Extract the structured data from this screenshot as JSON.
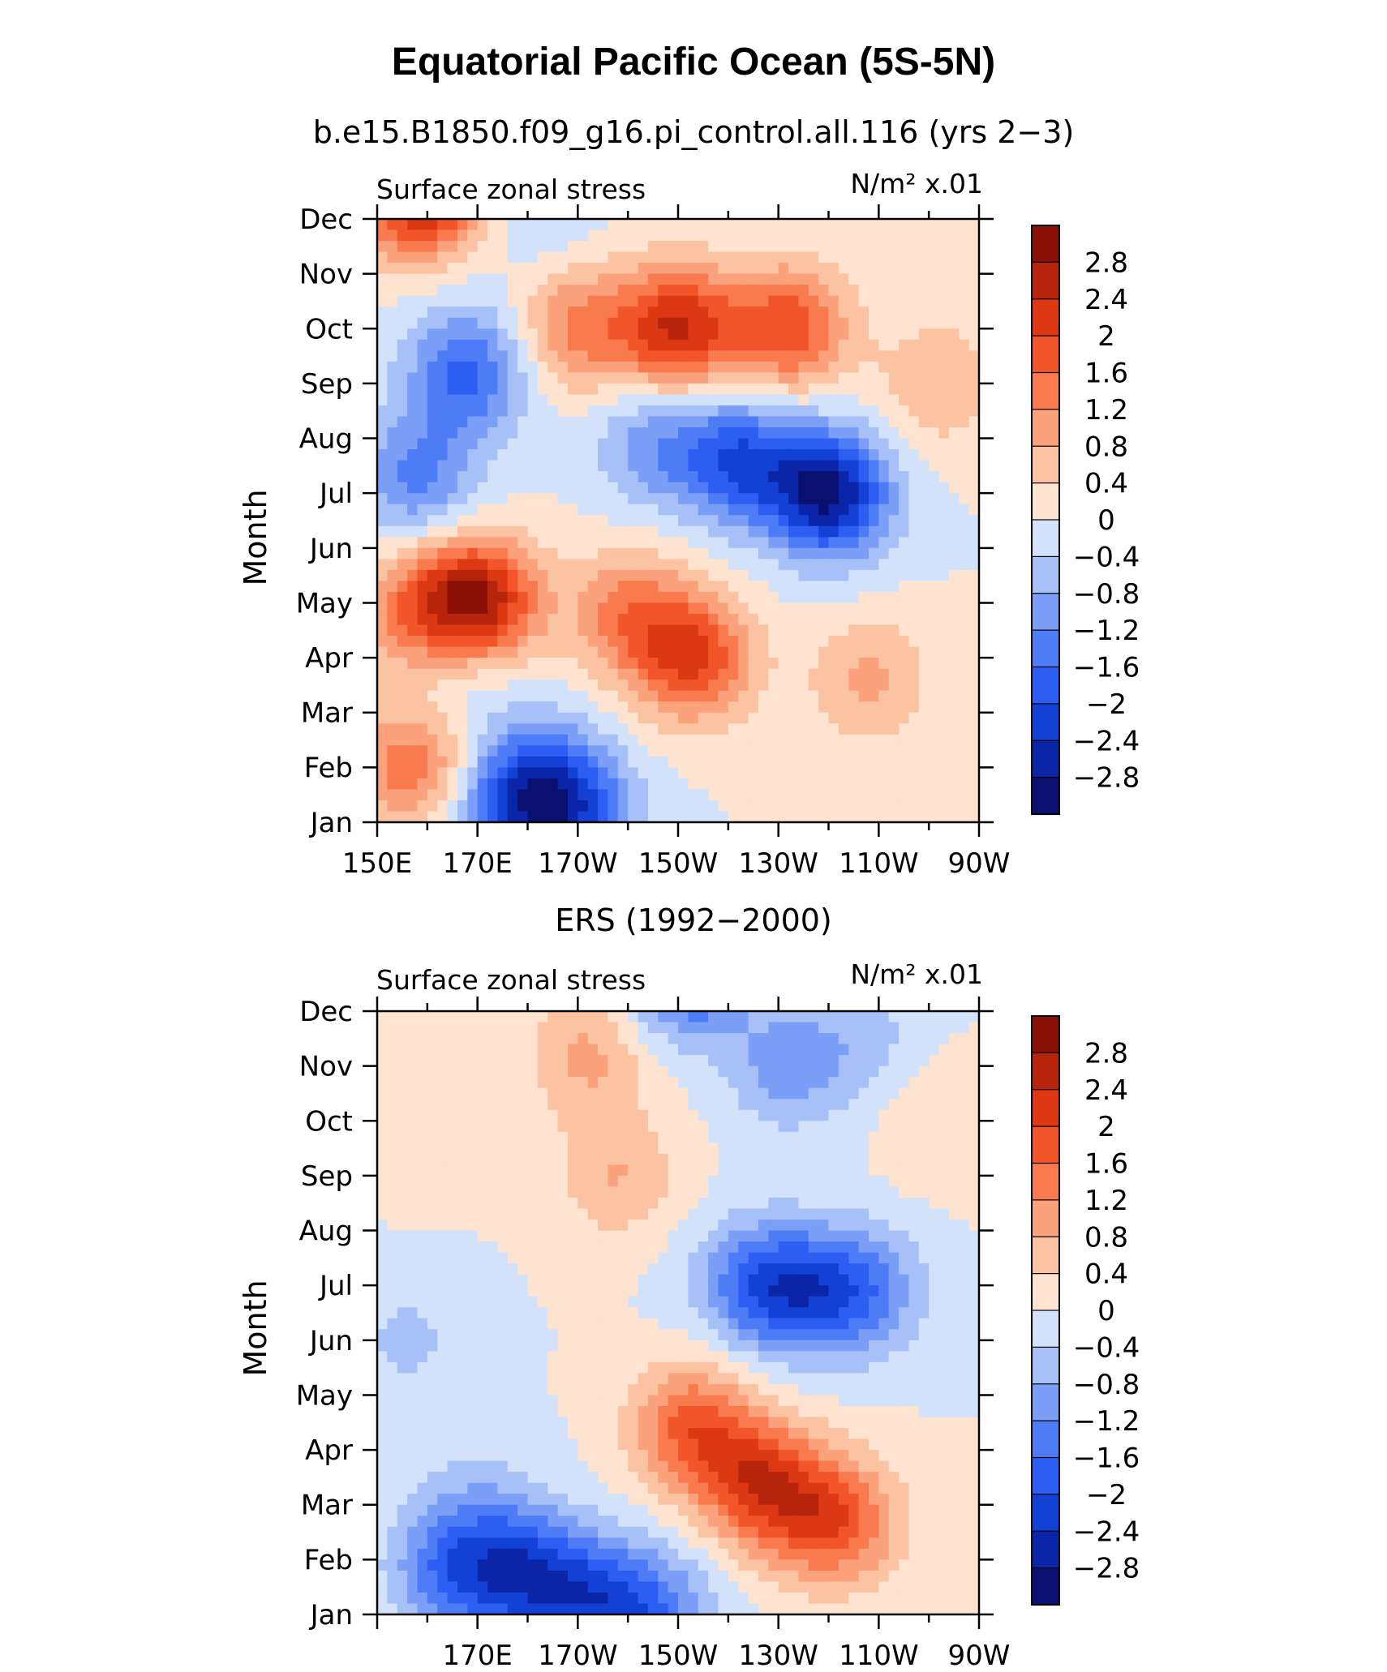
{
  "figure": {
    "title": "Equatorial Pacific Ocean (5S-5N)"
  },
  "chart_data": [
    {
      "type": "heatmap",
      "panel_title": "b.e15.B1850.f09_g16.pi_control.all.116 (yrs 2−3)",
      "left_label": "Surface zonal stress",
      "units_label": "N/m² x.01",
      "ylabel": "Month",
      "y_ticks": [
        "Jan",
        "Feb",
        "Mar",
        "Apr",
        "May",
        "Jun",
        "Jul",
        "Aug",
        "Sep",
        "Oct",
        "Nov",
        "Dec"
      ],
      "x_ticks": [
        "150E",
        "170E",
        "170W",
        "150W",
        "130W",
        "110W",
        "90W"
      ],
      "x_ticks_lon": [
        150,
        170,
        190,
        210,
        230,
        250,
        270
      ],
      "xlim": [
        150,
        270
      ],
      "colorbar_labels": [
        "2.8",
        "2.4",
        "2",
        "1.6",
        "1.2",
        "0.8",
        "0.4",
        "0",
        "−0.4",
        "−0.8",
        "−1.2",
        "−1.6",
        "−2",
        "−2.4",
        "−2.8"
      ],
      "blobs": [
        {
          "lon": 156,
          "month": 11.3,
          "value": 1.4
        },
        {
          "lon": 162,
          "month": 11.8,
          "value": 2.0
        },
        {
          "lon": 168,
          "month": 8.2,
          "value": -1.7
        },
        {
          "lon": 158,
          "month": 6.3,
          "value": -1.3
        },
        {
          "lon": 210,
          "month": 9.0,
          "value": 2.4
        },
        {
          "lon": 190,
          "month": 9.0,
          "value": 1.3
        },
        {
          "lon": 232,
          "month": 9.0,
          "value": 1.9
        },
        {
          "lon": 240,
          "month": 6.0,
          "value": -2.9
        },
        {
          "lon": 222,
          "month": 6.6,
          "value": -1.9
        },
        {
          "lon": 205,
          "month": 6.9,
          "value": -1.0
        },
        {
          "lon": 170,
          "month": 4.0,
          "value": 2.9
        },
        {
          "lon": 158,
          "month": 3.8,
          "value": 1.3
        },
        {
          "lon": 213,
          "month": 3.0,
          "value": 2.0
        },
        {
          "lon": 200,
          "month": 3.8,
          "value": 1.3
        },
        {
          "lon": 248,
          "month": 2.6,
          "value": 0.9
        },
        {
          "lon": 157,
          "month": 1.0,
          "value": 1.5
        },
        {
          "lon": 182,
          "month": 0.8,
          "value": -1.5
        },
        {
          "lon": 175,
          "month": 0.1,
          "value": -1.2
        },
        {
          "lon": 190,
          "month": 0.1,
          "value": -1.6
        },
        {
          "lon": 167,
          "month": 3.0,
          "value": -0.7
        },
        {
          "lon": 262,
          "month": 8.0,
          "value": 0.8
        },
        {
          "lon": 182,
          "month": 11.3,
          "value": -0.5
        }
      ]
    },
    {
      "type": "heatmap",
      "panel_title": "ERS (1992−2000)",
      "left_label": "Surface zonal stress",
      "units_label": "N/m² x.01",
      "ylabel": "Month",
      "y_ticks": [
        "Jan",
        "Feb",
        "Mar",
        "Apr",
        "May",
        "Jun",
        "Jul",
        "Aug",
        "Sep",
        "Oct",
        "Nov",
        "Dec"
      ],
      "x_ticks": [
        "170E",
        "170W",
        "150W",
        "130W",
        "110W",
        "90W"
      ],
      "x_ticks_lon": [
        170,
        190,
        210,
        230,
        250,
        270
      ],
      "xlim": [
        150,
        270
      ],
      "colorbar_labels": [
        "2.8",
        "2.4",
        "2",
        "1.6",
        "1.2",
        "0.8",
        "0.4",
        "0",
        "−0.4",
        "−0.8",
        "−1.2",
        "−1.6",
        "−2",
        "−2.4",
        "−2.8"
      ],
      "blobs": [
        {
          "lon": 212,
          "month": 11.7,
          "value": -2.0
        },
        {
          "lon": 232,
          "month": 10.0,
          "value": -1.0
        },
        {
          "lon": 248,
          "month": 10.5,
          "value": -0.5
        },
        {
          "lon": 192,
          "month": 10.2,
          "value": 0.9
        },
        {
          "lon": 160,
          "month": 9.0,
          "value": 0.4
        },
        {
          "lon": 198,
          "month": 8.0,
          "value": 0.8
        },
        {
          "lon": 232,
          "month": 5.9,
          "value": -1.7
        },
        {
          "lon": 246,
          "month": 5.9,
          "value": -1.5
        },
        {
          "lon": 223,
          "month": 6.1,
          "value": -0.8
        },
        {
          "lon": 226,
          "month": 2.4,
          "value": 1.9
        },
        {
          "lon": 213,
          "month": 3.4,
          "value": 1.7
        },
        {
          "lon": 238,
          "month": 1.8,
          "value": 1.3
        },
        {
          "lon": 245,
          "month": 1.6,
          "value": 0.8
        },
        {
          "lon": 180,
          "month": 0.7,
          "value": -2.0
        },
        {
          "lon": 165,
          "month": 0.8,
          "value": -1.5
        },
        {
          "lon": 195,
          "month": 0.2,
          "value": -1.7
        },
        {
          "lon": 207,
          "month": 0.0,
          "value": -1.0
        },
        {
          "lon": 262,
          "month": 9.0,
          "value": 0.4
        },
        {
          "lon": 156,
          "month": 5.0,
          "value": -0.5
        },
        {
          "lon": 170,
          "month": 2.0,
          "value": -0.5
        }
      ]
    }
  ],
  "colors": {
    "levels": [
      "#0a1070",
      "#0b25a8",
      "#1341d6",
      "#2d5ef3",
      "#4e7cf6",
      "#7b9ff7",
      "#a7c0f8",
      "#d2e2fb",
      "#fde3d0",
      "#fcc3a2",
      "#fba17c",
      "#f87a4e",
      "#f3552a",
      "#dd3814",
      "#b7240c",
      "#8a1006"
    ]
  }
}
